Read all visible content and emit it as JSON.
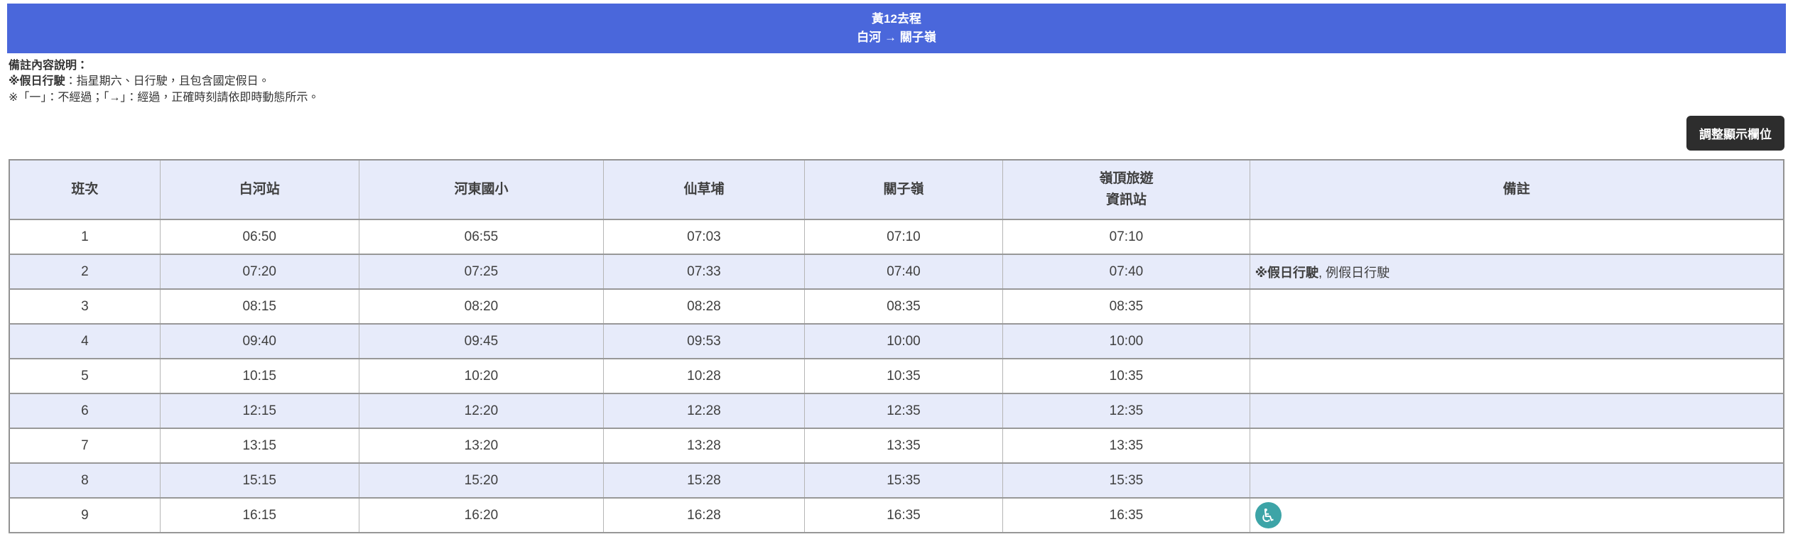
{
  "banner": {
    "line1": "黃12去程",
    "line2": "白河 → 關子嶺",
    "bg_color": "#4a67db"
  },
  "notes": {
    "title": "備註內容說明：",
    "line1_bold": "※假日行駛",
    "line1_rest": "：指星期六、日行駛，且包含國定假日。",
    "line2": "※「一」：不經過；「→」：經過，正確時刻請依即時動態所示。"
  },
  "toolbar": {
    "adjust_columns_label": "調整顯示欄位",
    "button_bg": "#2d2d2d"
  },
  "table": {
    "header_bg": "#e7ebfa",
    "alt_row_bg": "#e7ebfa",
    "headers": [
      "班次",
      "白河站",
      "河東國小",
      "仙草埔",
      "關子嶺",
      "嶺頂旅遊\n資訊站",
      "備註"
    ],
    "accessible_icon": {
      "name": "wheelchair-icon",
      "glyph": "♿",
      "color": "#3da4a7"
    },
    "rows": [
      {
        "no": "1",
        "times": [
          "06:50",
          "06:55",
          "07:03",
          "07:10",
          "07:10"
        ],
        "note_bold": "",
        "note_rest": "",
        "accessible": false
      },
      {
        "no": "2",
        "times": [
          "07:20",
          "07:25",
          "07:33",
          "07:40",
          "07:40"
        ],
        "note_bold": "※假日行駛",
        "note_rest": ", 例假日行駛",
        "accessible": false
      },
      {
        "no": "3",
        "times": [
          "08:15",
          "08:20",
          "08:28",
          "08:35",
          "08:35"
        ],
        "note_bold": "",
        "note_rest": "",
        "accessible": false
      },
      {
        "no": "4",
        "times": [
          "09:40",
          "09:45",
          "09:53",
          "10:00",
          "10:00"
        ],
        "note_bold": "",
        "note_rest": "",
        "accessible": false
      },
      {
        "no": "5",
        "times": [
          "10:15",
          "10:20",
          "10:28",
          "10:35",
          "10:35"
        ],
        "note_bold": "",
        "note_rest": "",
        "accessible": false
      },
      {
        "no": "6",
        "times": [
          "12:15",
          "12:20",
          "12:28",
          "12:35",
          "12:35"
        ],
        "note_bold": "",
        "note_rest": "",
        "accessible": false
      },
      {
        "no": "7",
        "times": [
          "13:15",
          "13:20",
          "13:28",
          "13:35",
          "13:35"
        ],
        "note_bold": "",
        "note_rest": "",
        "accessible": false
      },
      {
        "no": "8",
        "times": [
          "15:15",
          "15:20",
          "15:28",
          "15:35",
          "15:35"
        ],
        "note_bold": "",
        "note_rest": "",
        "accessible": false
      },
      {
        "no": "9",
        "times": [
          "16:15",
          "16:20",
          "16:28",
          "16:35",
          "16:35"
        ],
        "note_bold": "",
        "note_rest": "",
        "accessible": true
      }
    ]
  }
}
